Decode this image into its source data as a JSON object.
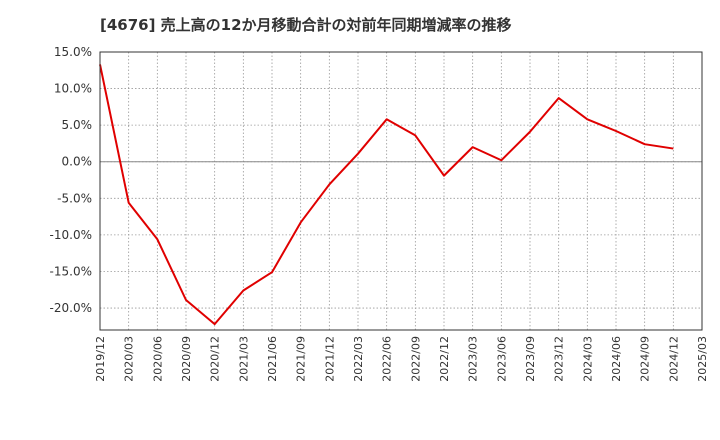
{
  "chart_data": {
    "type": "line",
    "title": "[4676]  売上高の12か月移動合計の対前年同期増減率の推移",
    "xlabel": "",
    "ylabel": "",
    "ylim": [
      -23,
      15
    ],
    "yticks": [
      15,
      10,
      5,
      0,
      -5,
      -10,
      -15,
      -20
    ],
    "ytick_labels": [
      "15.0%",
      "10.0%",
      "5.0%",
      "0.0%",
      "-5.0%",
      "-10.0%",
      "-15.0%",
      "-20.0%"
    ],
    "x_range": [
      "2019/12",
      "2025/03"
    ],
    "xtick_labels": [
      "2019/12",
      "2020/03",
      "2020/06",
      "2020/09",
      "2020/12",
      "2021/03",
      "2021/06",
      "2021/09",
      "2021/12",
      "2022/03",
      "2022/06",
      "2022/09",
      "2022/12",
      "2023/03",
      "2023/06",
      "2023/09",
      "2023/12",
      "2024/03",
      "2024/06",
      "2024/09",
      "2024/12",
      "2025/03"
    ],
    "grid": true,
    "series": [
      {
        "name": "売上高の12か月移動合計の対前年同期増減率",
        "color": "#e00000",
        "x": [
          "2019/12",
          "2020/03",
          "2020/06",
          "2020/09",
          "2020/12",
          "2021/03",
          "2021/06",
          "2021/09",
          "2021/12",
          "2022/03",
          "2022/06",
          "2022/09",
          "2022/12",
          "2023/03",
          "2023/06",
          "2023/09",
          "2023/12",
          "2024/03",
          "2024/06",
          "2024/09",
          "2024/12"
        ],
        "values": [
          13.3,
          -5.6,
          -10.6,
          -18.9,
          -22.2,
          -17.6,
          -15.1,
          -8.3,
          -3.1,
          1.1,
          5.8,
          3.6,
          -1.9,
          2.0,
          0.2,
          4.1,
          8.7,
          5.8,
          4.2,
          2.4,
          1.8
        ]
      }
    ]
  }
}
